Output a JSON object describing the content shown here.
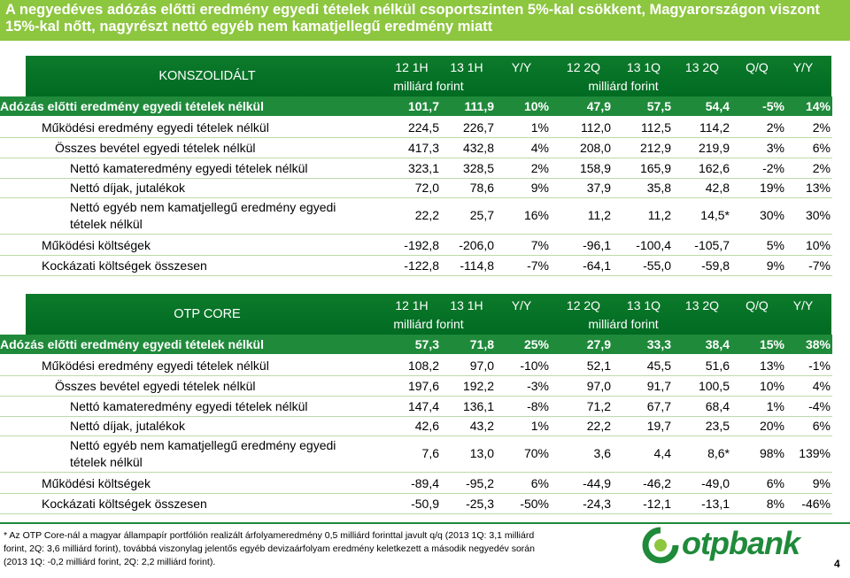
{
  "title": "A negyedéves adózás előtti eredmény egyedi tételek nélkül csoportszinten 5%-kal csökkent, Magyarországon viszont 15%-kal nőtt, nagyrészt nettó egyéb nem kamatjellegű eredmény miatt",
  "columns": [
    "12 1H",
    "13 1H",
    "Y/Y",
    "12 2Q",
    "13 1Q",
    "13 2Q",
    "Q/Q",
    "Y/Y"
  ],
  "unit": "milliárd forint",
  "tables": [
    {
      "label": "KONSZOLIDÁLT",
      "rows": [
        {
          "label": "Adózás előtti eredmény egyedi tételek nélkül",
          "values": [
            "101,7",
            "111,9",
            "10%",
            "47,9",
            "57,5",
            "54,4",
            "-5%",
            "14%"
          ]
        },
        {
          "label": "Működési eredmény egyedi tételek nélkül",
          "values": [
            "224,5",
            "226,7",
            "1%",
            "112,0",
            "112,5",
            "114,2",
            "2%",
            "2%"
          ]
        },
        {
          "label": "Összes bevétel egyedi tételek nélkül",
          "values": [
            "417,3",
            "432,8",
            "4%",
            "208,0",
            "212,9",
            "219,9",
            "3%",
            "6%"
          ]
        },
        {
          "label": "Nettó kamateredmény egyedi tételek nélkül",
          "values": [
            "323,1",
            "328,5",
            "2%",
            "158,9",
            "165,9",
            "162,6",
            "-2%",
            "2%"
          ]
        },
        {
          "label": "Nettó díjak, jutalékok",
          "values": [
            "72,0",
            "78,6",
            "9%",
            "37,9",
            "35,8",
            "42,8",
            "19%",
            "13%"
          ]
        },
        {
          "label": "Nettó egyéb nem kamatjellegű eredmény egyedi tételek nélkül",
          "values": [
            "22,2",
            "25,7",
            "16%",
            "11,2",
            "11,2",
            "14,5*",
            "30%",
            "30%"
          ]
        },
        {
          "label": "Működési költségek",
          "values": [
            "-192,8",
            "-206,0",
            "7%",
            "-96,1",
            "-100,4",
            "-105,7",
            "5%",
            "10%"
          ]
        },
        {
          "label": "Kockázati költségek összesen",
          "values": [
            "-122,8",
            "-114,8",
            "-7%",
            "-64,1",
            "-55,0",
            "-59,8",
            "9%",
            "-7%"
          ]
        }
      ]
    },
    {
      "label": "OTP CORE",
      "rows": [
        {
          "label": "Adózás előtti eredmény egyedi tételek nélkül",
          "values": [
            "57,3",
            "71,8",
            "25%",
            "27,9",
            "33,3",
            "38,4",
            "15%",
            "38%"
          ]
        },
        {
          "label": "Működési eredmény egyedi tételek nélkül",
          "values": [
            "108,2",
            "97,0",
            "-10%",
            "52,1",
            "45,5",
            "51,6",
            "13%",
            "-1%"
          ]
        },
        {
          "label": "Összes bevétel egyedi tételek nélkül",
          "values": [
            "197,6",
            "192,2",
            "-3%",
            "97,0",
            "91,7",
            "100,5",
            "10%",
            "4%"
          ]
        },
        {
          "label": "Nettó kamateredmény egyedi tételek nélkül",
          "values": [
            "147,4",
            "136,1",
            "-8%",
            "71,2",
            "67,7",
            "68,4",
            "1%",
            "-4%"
          ]
        },
        {
          "label": "Nettó díjak, jutalékok",
          "values": [
            "42,6",
            "43,2",
            "1%",
            "22,2",
            "19,7",
            "23,5",
            "20%",
            "6%"
          ]
        },
        {
          "label": "Nettó egyéb nem kamatjellegű eredmény egyedi tételek nélkül",
          "values": [
            "7,6",
            "13,0",
            "70%",
            "3,6",
            "4,4",
            "8,6*",
            "98%",
            "139%"
          ]
        },
        {
          "label": "Működési költségek",
          "values": [
            "-89,4",
            "-95,2",
            "6%",
            "-44,9",
            "-46,2",
            "-49,0",
            "6%",
            "9%"
          ]
        },
        {
          "label": "Kockázati költségek összesen",
          "values": [
            "-50,9",
            "-25,3",
            "-50%",
            "-24,3",
            "-12,1",
            "-13,1",
            "8%",
            "-46%"
          ]
        }
      ]
    }
  ],
  "footnote": "* Az OTP Core-nál a magyar állampapír portfólión realizált árfolyameredmény 0,5 milliárd forinttal javult q/q (2013 1Q: 3,1 milliárd forint, 2Q: 3,6 milliárd forint), továbbá viszonylag jelentős egyéb devizaárfolyam eredmény keletkezett a második negyedév során (2013 1Q: -0,2 milliárd forint, 2Q: 2,2 milliárd forint).",
  "logo_text": "otpbank",
  "page_number": "4",
  "colors": {
    "accent": "#8dc63f",
    "dark_green": "#1f8a3a",
    "header_green": "#0d7a2b"
  }
}
